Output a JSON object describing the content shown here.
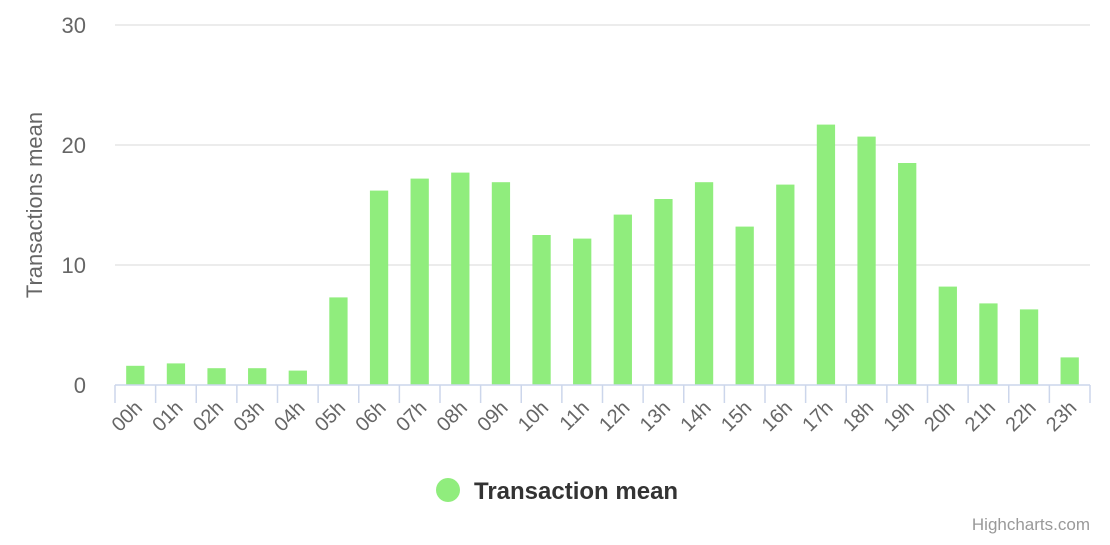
{
  "chart_data": {
    "type": "bar",
    "title": "",
    "xlabel": "",
    "ylabel": "Transactions mean",
    "ylim": [
      0,
      30
    ],
    "yticks": [
      0,
      10,
      20,
      30
    ],
    "grid": true,
    "legend_position": "bottom-center",
    "categories": [
      "00h",
      "01h",
      "02h",
      "03h",
      "04h",
      "05h",
      "06h",
      "07h",
      "08h",
      "09h",
      "10h",
      "11h",
      "12h",
      "13h",
      "14h",
      "15h",
      "16h",
      "17h",
      "18h",
      "19h",
      "20h",
      "21h",
      "22h",
      "23h"
    ],
    "series": [
      {
        "name": "Transaction mean",
        "color": "#90ed7d",
        "values": [
          1.6,
          1.8,
          1.4,
          1.4,
          1.2,
          7.3,
          16.2,
          17.2,
          17.7,
          16.9,
          12.5,
          12.2,
          14.2,
          15.5,
          16.9,
          13.2,
          16.7,
          21.7,
          20.7,
          18.5,
          8.2,
          6.8,
          6.3,
          2.3
        ]
      }
    ]
  },
  "credits": "Highcharts.com",
  "colors": {
    "grid": "#e6e6e6",
    "axis_line": "#ccd6eb",
    "label": "#666666",
    "legend_text": "#333333",
    "credits": "#999999"
  }
}
